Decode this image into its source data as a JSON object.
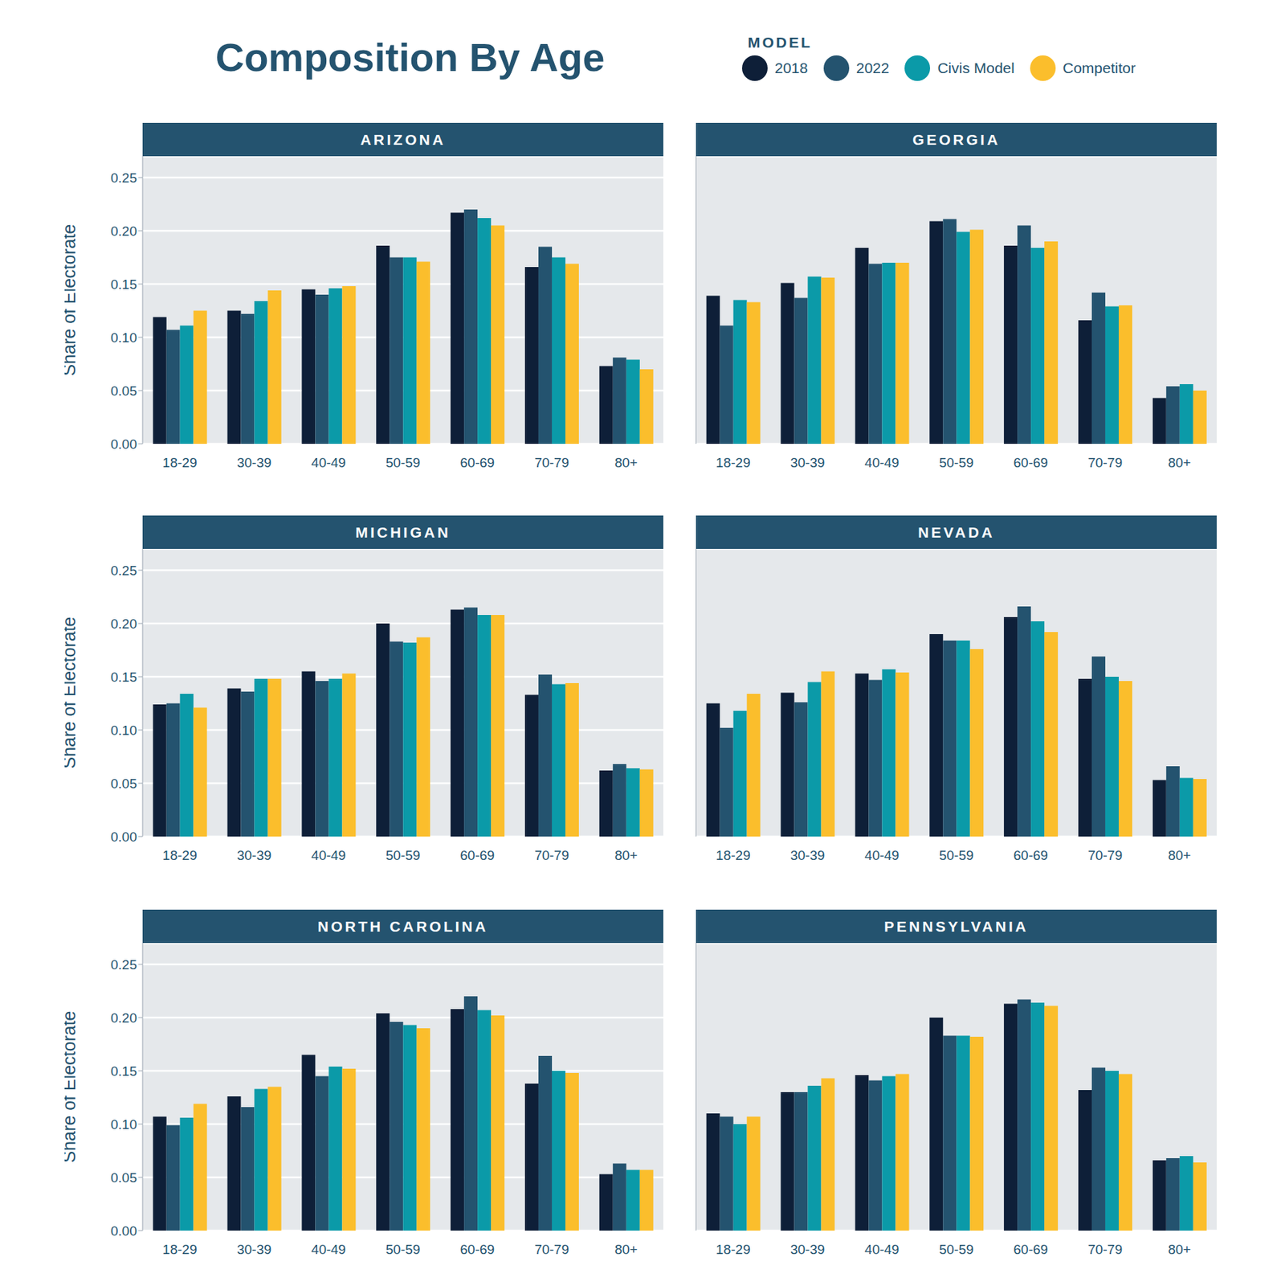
{
  "title": "Composition By Age",
  "legend_title": "MODEL",
  "chart_data": [
    {
      "type": "bar",
      "title": "ARIZONA",
      "ylabel": "Share of Electorate",
      "categories": [
        "18-29",
        "30-39",
        "40-49",
        "50-59",
        "60-69",
        "70-79",
        "80+"
      ],
      "ylim": [
        0,
        0.27
      ],
      "yticks": [
        {
          "value": 0,
          "label": "0.00"
        },
        0.05,
        {
          "value": 0.1,
          "label": "0.10"
        },
        0.15,
        {
          "value": 0.2,
          "label": "0.20"
        },
        0.25
      ],
      "grid": true,
      "series": [
        {
          "name": "2018",
          "color": "#0e1f38",
          "values": [
            0.119,
            0.125,
            0.145,
            0.186,
            0.217,
            0.166,
            0.073
          ]
        },
        {
          "name": "2022",
          "color": "#24536f",
          "values": [
            0.107,
            0.122,
            0.14,
            0.175,
            0.22,
            0.185,
            0.081
          ]
        },
        {
          "name": "Civis Model",
          "color": "#0b9aa8",
          "values": [
            0.111,
            0.134,
            0.146,
            0.175,
            0.212,
            0.175,
            0.079
          ]
        },
        {
          "name": "Competitor",
          "color": "#fbbe2c",
          "values": [
            0.125,
            0.144,
            0.148,
            0.171,
            0.205,
            0.169,
            0.07
          ]
        }
      ]
    },
    {
      "type": "bar",
      "title": "GEORGIA",
      "categories": [
        "18-29",
        "30-39",
        "40-49",
        "50-59",
        "60-69",
        "70-79",
        "80+"
      ],
      "ylim": [
        0,
        0.27
      ],
      "yticks": [
        0,
        0.05,
        0.1,
        0.15,
        0.2,
        0.25
      ],
      "tick_labels": "x",
      "grid": true,
      "series": [
        {
          "name": "2018",
          "color": "#0e1f38",
          "values": [
            0.139,
            0.151,
            0.184,
            0.209,
            0.186,
            0.116,
            0.043
          ]
        },
        {
          "name": "2022",
          "color": "#24536f",
          "values": [
            0.111,
            0.137,
            0.169,
            0.211,
            0.205,
            0.142,
            0.054
          ]
        },
        {
          "name": "Civis Model",
          "color": "#0b9aa8",
          "values": [
            0.135,
            0.157,
            0.17,
            0.199,
            0.184,
            0.129,
            0.056
          ]
        },
        {
          "name": "Competitor",
          "color": "#fbbe2c",
          "values": [
            0.133,
            0.156,
            0.17,
            0.201,
            0.19,
            0.13,
            0.05
          ]
        }
      ]
    },
    {
      "type": "bar",
      "title": "MICHIGAN",
      "ylabel": "Share of Electorate",
      "categories": [
        "18-29",
        "30-39",
        "40-49",
        "50-59",
        "60-69",
        "70-79",
        "80+"
      ],
      "ylim": [
        0,
        0.27
      ],
      "yticks": [
        {
          "value": 0,
          "label": "0.00"
        },
        0.05,
        {
          "value": 0.1,
          "label": "0.10"
        },
        0.15,
        {
          "value": 0.2,
          "label": "0.20"
        },
        0.25
      ],
      "grid": true,
      "series": [
        {
          "name": "2018",
          "color": "#0e1f38",
          "values": [
            0.124,
            0.139,
            0.155,
            0.2,
            0.213,
            0.133,
            0.062
          ]
        },
        {
          "name": "2022",
          "color": "#24536f",
          "values": [
            0.125,
            0.136,
            0.146,
            0.183,
            0.215,
            0.152,
            0.068
          ]
        },
        {
          "name": "Civis Model",
          "color": "#0b9aa8",
          "values": [
            0.134,
            0.148,
            0.148,
            0.182,
            0.208,
            0.143,
            0.064
          ]
        },
        {
          "name": "Competitor",
          "color": "#fbbe2c",
          "values": [
            0.121,
            0.148,
            0.153,
            0.187,
            0.208,
            0.144,
            0.063
          ]
        }
      ]
    },
    {
      "type": "bar",
      "title": "NEVADA",
      "categories": [
        "18-29",
        "30-39",
        "40-49",
        "50-59",
        "60-69",
        "70-79",
        "80+"
      ],
      "ylim": [
        0,
        0.27
      ],
      "yticks": [
        0,
        0.05,
        0.1,
        0.15,
        0.2,
        0.25
      ],
      "tick_labels": "x",
      "grid": true,
      "series": [
        {
          "name": "2018",
          "color": "#0e1f38",
          "values": [
            0.125,
            0.135,
            0.153,
            0.19,
            0.206,
            0.148,
            0.053
          ]
        },
        {
          "name": "2022",
          "color": "#24536f",
          "values": [
            0.102,
            0.126,
            0.147,
            0.184,
            0.216,
            0.169,
            0.066
          ]
        },
        {
          "name": "Civis Model",
          "color": "#0b9aa8",
          "values": [
            0.118,
            0.145,
            0.157,
            0.184,
            0.202,
            0.15,
            0.055
          ]
        },
        {
          "name": "Competitor",
          "color": "#fbbe2c",
          "values": [
            0.134,
            0.155,
            0.154,
            0.176,
            0.192,
            0.146,
            0.054
          ]
        }
      ]
    },
    {
      "type": "bar",
      "title": "NORTH CAROLINA",
      "ylabel": "Share of Electorate",
      "categories": [
        "18-29",
        "30-39",
        "40-49",
        "50-59",
        "60-69",
        "70-79",
        "80+"
      ],
      "ylim": [
        0,
        0.27
      ],
      "yticks": [
        {
          "value": 0,
          "label": "0.00"
        },
        0.05,
        {
          "value": 0.1,
          "label": "0.10"
        },
        0.15,
        {
          "value": 0.2,
          "label": "0.20"
        },
        0.25
      ],
      "grid": true,
      "series": [
        {
          "name": "2018",
          "color": "#0e1f38",
          "values": [
            0.107,
            0.126,
            0.165,
            0.204,
            0.208,
            0.138,
            0.053
          ]
        },
        {
          "name": "2022",
          "color": "#24536f",
          "values": [
            0.099,
            0.116,
            0.145,
            0.196,
            0.22,
            0.164,
            0.063
          ]
        },
        {
          "name": "Civis Model",
          "color": "#0b9aa8",
          "values": [
            0.106,
            0.133,
            0.154,
            0.193,
            0.207,
            0.15,
            0.057
          ]
        },
        {
          "name": "Competitor",
          "color": "#fbbe2c",
          "values": [
            0.119,
            0.135,
            0.152,
            0.19,
            0.202,
            0.148,
            0.057
          ]
        }
      ]
    },
    {
      "type": "bar",
      "title": "PENNSYLVANIA",
      "categories": [
        "18-29",
        "30-39",
        "40-49",
        "50-59",
        "60-69",
        "70-79",
        "80+"
      ],
      "ylim": [
        0,
        0.27
      ],
      "yticks": [
        0,
        0.05,
        0.1,
        0.15,
        0.2,
        0.25
      ],
      "tick_labels": "x",
      "grid": true,
      "series": [
        {
          "name": "2018",
          "color": "#0e1f38",
          "values": [
            0.11,
            0.13,
            0.146,
            0.2,
            0.213,
            0.132,
            0.066
          ]
        },
        {
          "name": "2022",
          "color": "#24536f",
          "values": [
            0.107,
            0.13,
            0.141,
            0.183,
            0.217,
            0.153,
            0.068
          ]
        },
        {
          "name": "Civis Model",
          "color": "#0b9aa8",
          "values": [
            0.1,
            0.136,
            0.145,
            0.183,
            0.214,
            0.15,
            0.07
          ]
        },
        {
          "name": "Competitor",
          "color": "#fbbe2c",
          "values": [
            0.107,
            0.143,
            0.147,
            0.182,
            0.211,
            0.147,
            0.064
          ]
        }
      ]
    }
  ]
}
